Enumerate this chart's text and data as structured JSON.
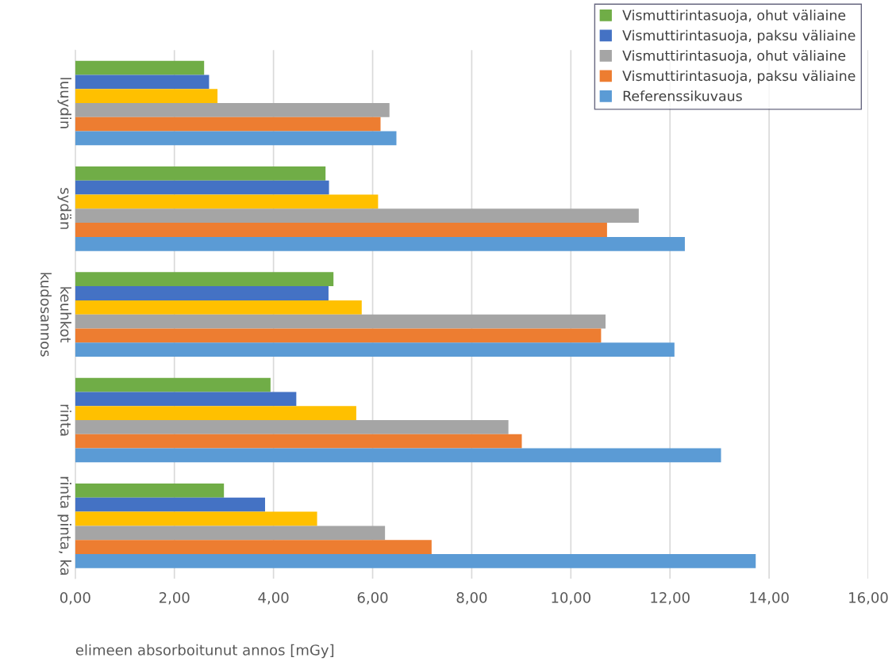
{
  "chart_data": {
    "type": "bar",
    "orientation": "horizontal",
    "xlabel": "elimeen absorboitunut annos [mGy]",
    "ylabel": "kudosannos",
    "categories": [
      "luuydin",
      "sydän",
      "keuhkot",
      "rinta",
      "rinta pinta, ka"
    ],
    "series": [
      {
        "name": "Vismuttirintasuoja, ohut väliaine",
        "color": "#70ad47",
        "values": [
          2.6,
          5.05,
          5.21,
          3.94,
          3.0
        ]
      },
      {
        "name": "Vismuttirintasuoja, paksu väliaine",
        "color": "#4472c4",
        "values": [
          2.7,
          5.12,
          5.11,
          4.46,
          3.83
        ]
      },
      {
        "color": "#ffc000",
        "values": [
          2.87,
          6.11,
          5.78,
          5.67,
          4.88
        ]
      },
      {
        "name": "Vismuttirintasuoja, ohut väliaine",
        "color": "#a5a5a5",
        "values": [
          6.34,
          11.37,
          10.7,
          8.74,
          6.25
        ]
      },
      {
        "name": "Vismuttirintasuoja, paksu väliaine",
        "color": "#ed7d31",
        "values": [
          6.16,
          10.73,
          10.61,
          9.01,
          7.19
        ]
      },
      {
        "name": "Referenssikuvaus",
        "color": "#5b9bd5",
        "values": [
          6.48,
          12.3,
          12.09,
          13.03,
          13.73
        ]
      }
    ],
    "xlim": [
      0,
      16
    ],
    "xticks": [
      {
        "value": 0,
        "label": "0,00"
      },
      {
        "value": 2,
        "label": "2,00"
      },
      {
        "value": 4,
        "label": "4,00"
      },
      {
        "value": 6,
        "label": "6,00"
      },
      {
        "value": 8,
        "label": "8,00"
      },
      {
        "value": 10,
        "label": "10,00"
      },
      {
        "value": 12,
        "label": "12,00"
      },
      {
        "value": 14,
        "label": "14,00"
      },
      {
        "value": 16,
        "label": "16,00"
      }
    ],
    "grid": "x",
    "legend": "top right"
  }
}
